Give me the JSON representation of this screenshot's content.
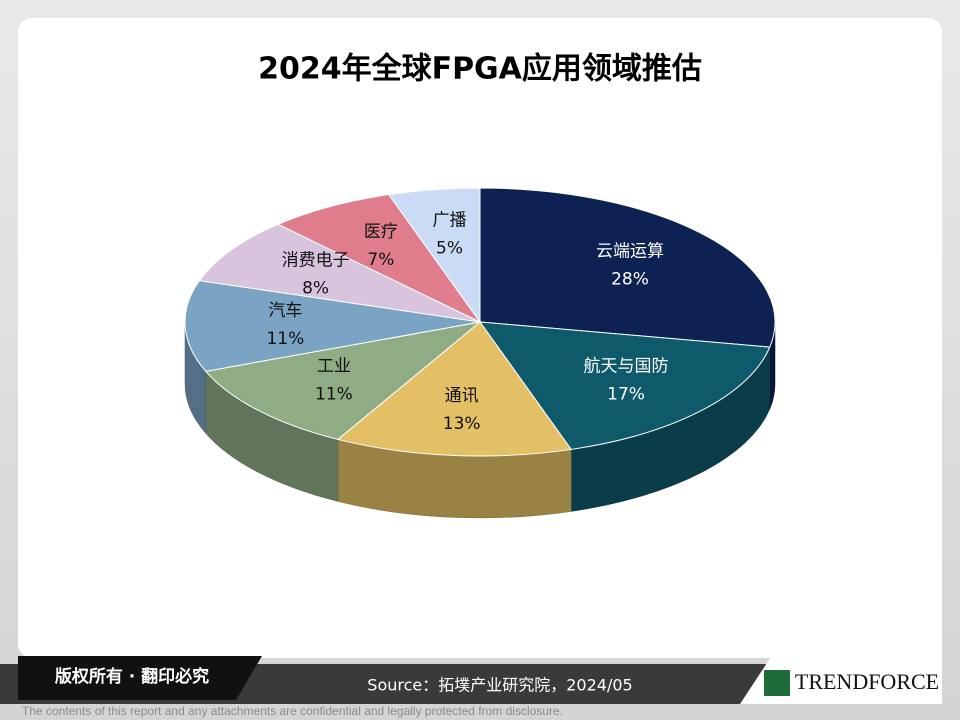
{
  "chart_data": {
    "type": "pie",
    "title": "2024年全球FPGA应用领域推估",
    "categories": [
      "云端运算",
      "航天与国防",
      "通讯",
      "工业",
      "汽车",
      "消费电子",
      "医疗",
      "广播"
    ],
    "values": [
      28,
      17,
      13,
      11,
      11,
      8,
      7,
      5
    ],
    "value_labels": [
      "28%",
      "17%",
      "13%",
      "11%",
      "11%",
      "8%",
      "7%",
      "5%"
    ],
    "colors": [
      "#0d2153",
      "#0e5a6b",
      "#e3bf65",
      "#8fac85",
      "#7ba3c4",
      "#d8c4dc",
      "#e07d8c",
      "#c9dbf5"
    ]
  },
  "footer": {
    "rights": "版权所有 · 翻印必究",
    "source": "Source：拓墣产业研究院，2024/05",
    "logo": "TRENDFORCE",
    "disclaimer": "The contents of this report and any attachments are confidential and legally protected from disclosure."
  }
}
